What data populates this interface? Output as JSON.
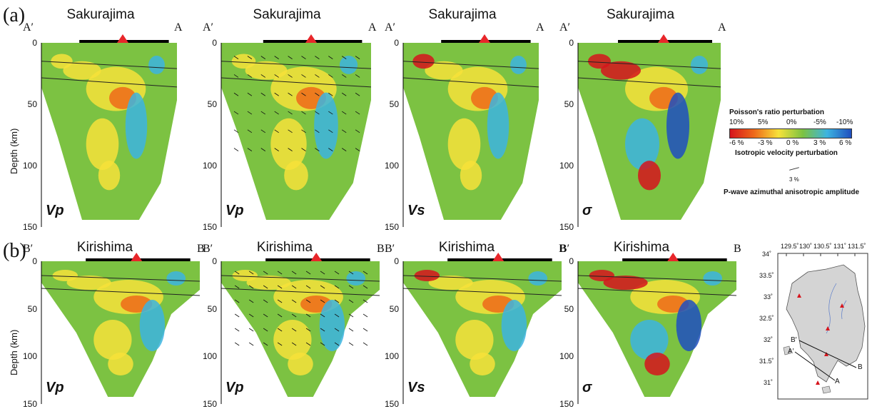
{
  "figure": {
    "row_a": {
      "label": "(a)",
      "volcano": "Sakurajima",
      "start": "A′",
      "end": "A",
      "panels": [
        "Vp",
        "Vp",
        "Vs",
        "σ"
      ]
    },
    "row_b": {
      "label": "(b)",
      "volcano": "Kirishima",
      "start": "B′",
      "end": "B",
      "panels": [
        "Vp",
        "Vp",
        "Vs",
        "σ"
      ]
    },
    "y_axis": {
      "label": "Depth (km)",
      "ticks": [
        "0",
        "50",
        "100",
        "150"
      ]
    },
    "legend": {
      "poisson_title": "Poisson's ratio perturbation",
      "poisson_ticks": [
        "10%",
        "5%",
        "0%",
        "-5%",
        "-10%"
      ],
      "velocity_ticks": [
        "-6 %",
        "-3 %",
        "0 %",
        "3 %",
        "6 %"
      ],
      "velocity_title": "Isotropic velocity perturbation",
      "scale_value": "3 %",
      "anisotropy_title": "P-wave azimuthal anisotropic amplitude",
      "colors": [
        "#d6141c",
        "#ee6a1a",
        "#f7e23a",
        "#7cc242",
        "#3cb4e0",
        "#1f4fbf"
      ]
    },
    "map": {
      "lon_ticks": [
        "129.5˚",
        "130˚",
        "130.5˚",
        "131˚",
        "131.5˚"
      ],
      "lat_ticks": [
        "34˚",
        "33.5˚",
        "33˚",
        "32.5˚",
        "32˚",
        "31.5˚",
        "31˚"
      ],
      "labels": [
        "A",
        "A′",
        "B",
        "B′"
      ]
    }
  }
}
